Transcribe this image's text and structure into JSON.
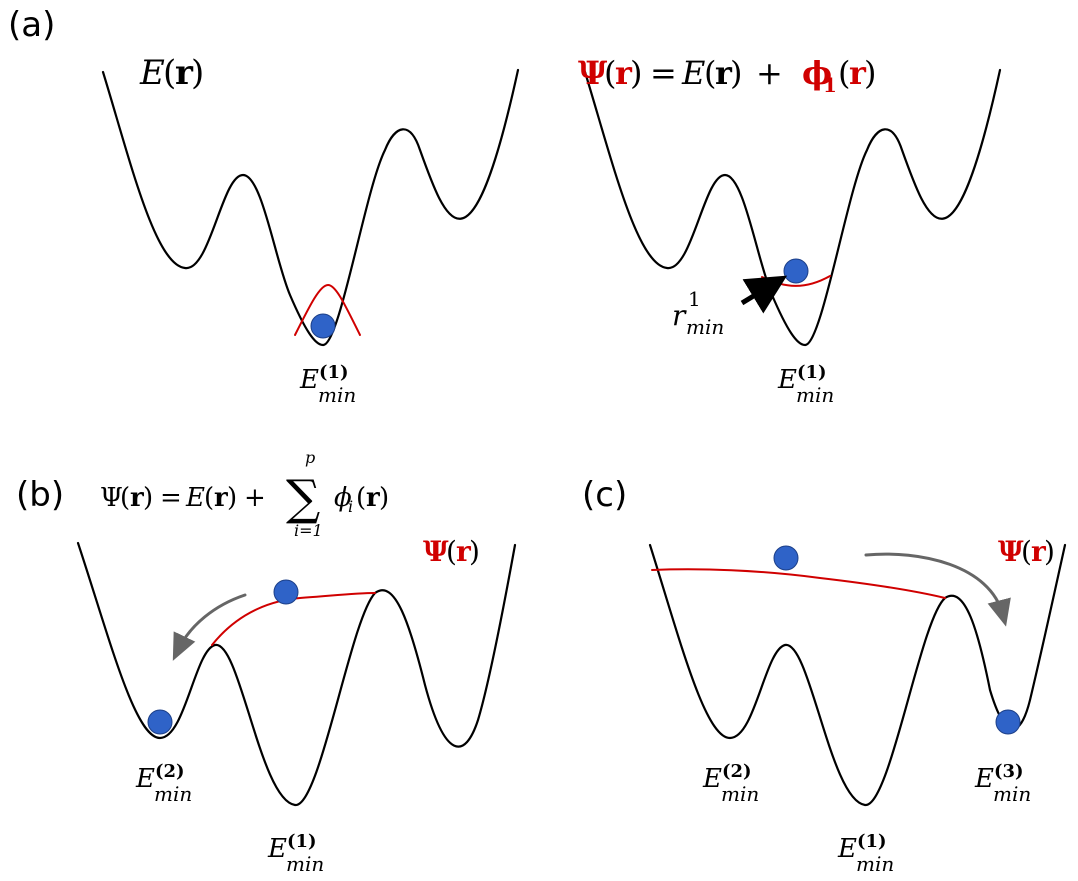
{
  "panels": {
    "a": {
      "label": "(a)"
    },
    "b": {
      "label": "(b)"
    },
    "c": {
      "label": "(c)"
    }
  },
  "labels": {
    "E": "E",
    "min": "min",
    "sup1": "(1)",
    "sup2": "(2)",
    "sup3": "(3)",
    "r": "r",
    "r_sup": "1",
    "psi": "Ψ",
    "phi": "ϕ",
    "phi_sub1": "1",
    "paren_open": "(",
    "paren_close": ")",
    "bold_r": "r",
    "equals": "=",
    "plus": "+",
    "sum": "∑",
    "sum_lower": "i=1",
    "sum_upper": "p",
    "phi_i": "ϕ",
    "sub_i": "i"
  },
  "colors": {
    "curve": "#000000",
    "bias": "#d00000",
    "ball": "#2f63c8",
    "arrow": "#666666"
  }
}
